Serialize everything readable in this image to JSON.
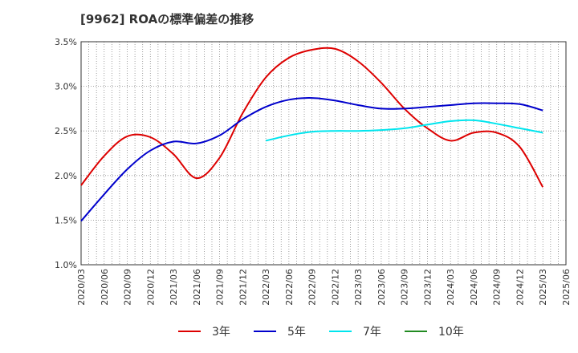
{
  "chart_data": {
    "type": "line",
    "title": "[9962]  ROAの標準偏差の推移",
    "xlabel": "",
    "ylabel": "",
    "ylim": [
      1.0,
      3.5
    ],
    "grid": true,
    "legend_position": "bottom",
    "y_ticks": [
      "1.0%",
      "1.5%",
      "2.0%",
      "2.5%",
      "3.0%",
      "3.5%"
    ],
    "categories": [
      "2020/03",
      "2020/06",
      "2020/09",
      "2020/12",
      "2021/03",
      "2021/06",
      "2021/09",
      "2021/12",
      "2022/03",
      "2022/06",
      "2022/09",
      "2022/12",
      "2023/03",
      "2023/06",
      "2023/09",
      "2023/12",
      "2024/03",
      "2024/06",
      "2024/09",
      "2024/12",
      "2025/03",
      "2025/06"
    ],
    "series": [
      {
        "name": "3年",
        "color": "#dd0000",
        "points": [
          [
            "2020/03",
            1.89
          ],
          [
            "2020/06",
            2.22
          ],
          [
            "2020/09",
            2.44
          ],
          [
            "2020/12",
            2.43
          ],
          [
            "2021/03",
            2.24
          ],
          [
            "2021/06",
            1.97
          ],
          [
            "2021/09",
            2.2
          ],
          [
            "2021/12",
            2.7
          ],
          [
            "2022/03",
            3.1
          ],
          [
            "2022/06",
            3.32
          ],
          [
            "2022/09",
            3.41
          ],
          [
            "2022/12",
            3.42
          ],
          [
            "2023/03",
            3.28
          ],
          [
            "2023/06",
            3.04
          ],
          [
            "2023/09",
            2.75
          ],
          [
            "2023/12",
            2.53
          ],
          [
            "2024/03",
            2.39
          ],
          [
            "2024/06",
            2.48
          ],
          [
            "2024/09",
            2.48
          ],
          [
            "2024/12",
            2.32
          ],
          [
            "2025/03",
            1.87
          ]
        ]
      },
      {
        "name": "5年",
        "color": "#0000cc",
        "points": [
          [
            "2020/03",
            1.49
          ],
          [
            "2020/06",
            1.79
          ],
          [
            "2020/09",
            2.07
          ],
          [
            "2020/12",
            2.28
          ],
          [
            "2021/03",
            2.38
          ],
          [
            "2021/06",
            2.36
          ],
          [
            "2021/09",
            2.45
          ],
          [
            "2021/12",
            2.63
          ],
          [
            "2022/03",
            2.77
          ],
          [
            "2022/06",
            2.85
          ],
          [
            "2022/09",
            2.87
          ],
          [
            "2022/12",
            2.84
          ],
          [
            "2023/03",
            2.79
          ],
          [
            "2023/06",
            2.75
          ],
          [
            "2023/09",
            2.75
          ],
          [
            "2023/12",
            2.77
          ],
          [
            "2024/03",
            2.79
          ],
          [
            "2024/06",
            2.81
          ],
          [
            "2024/09",
            2.81
          ],
          [
            "2024/12",
            2.8
          ],
          [
            "2025/03",
            2.73
          ]
        ]
      },
      {
        "name": "7年",
        "color": "#00e5ee",
        "points": [
          [
            "2022/03",
            2.39
          ],
          [
            "2022/06",
            2.45
          ],
          [
            "2022/09",
            2.49
          ],
          [
            "2022/12",
            2.5
          ],
          [
            "2023/03",
            2.5
          ],
          [
            "2023/06",
            2.51
          ],
          [
            "2023/09",
            2.53
          ],
          [
            "2023/12",
            2.57
          ],
          [
            "2024/03",
            2.61
          ],
          [
            "2024/06",
            2.62
          ],
          [
            "2024/09",
            2.58
          ],
          [
            "2024/12",
            2.53
          ],
          [
            "2025/03",
            2.48
          ]
        ]
      },
      {
        "name": "10年",
        "color": "#228b22",
        "points": []
      }
    ]
  }
}
